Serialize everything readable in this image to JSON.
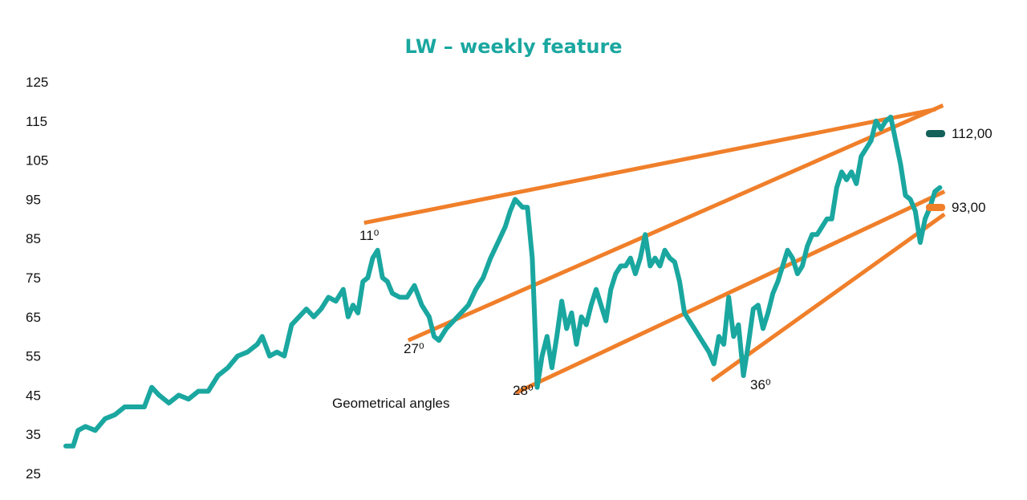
{
  "chart_data": {
    "type": "line",
    "title": "LW – weekly feature",
    "xlabel": "",
    "ylabel": "",
    "ylim": [
      25,
      125
    ],
    "yticks": [
      "125",
      "115",
      "105",
      "95",
      "85",
      "75",
      "65",
      "55",
      "45",
      "35",
      "25"
    ],
    "grid": false,
    "series": [
      {
        "color": "#1aa7a0",
        "points": [
          [
            0,
            32
          ],
          [
            3,
            32
          ],
          [
            5,
            36
          ],
          [
            8,
            37
          ],
          [
            12,
            36
          ],
          [
            16,
            39
          ],
          [
            20,
            40
          ],
          [
            24,
            42
          ],
          [
            28,
            42
          ],
          [
            32,
            42
          ],
          [
            35,
            47
          ],
          [
            38,
            45
          ],
          [
            42,
            43
          ],
          [
            46,
            45
          ],
          [
            50,
            44
          ],
          [
            54,
            46
          ],
          [
            58,
            46
          ],
          [
            62,
            50
          ],
          [
            66,
            52
          ],
          [
            70,
            55
          ],
          [
            74,
            56
          ],
          [
            78,
            58
          ],
          [
            80,
            60
          ],
          [
            83,
            55
          ],
          [
            86,
            56
          ],
          [
            89,
            55
          ],
          [
            92,
            63
          ],
          [
            95,
            65
          ],
          [
            98,
            67
          ],
          [
            101,
            65
          ],
          [
            104,
            67
          ],
          [
            107,
            70
          ],
          [
            110,
            69
          ],
          [
            113,
            72
          ],
          [
            115,
            65
          ],
          [
            117,
            68
          ],
          [
            119,
            66
          ],
          [
            121,
            74
          ],
          [
            123,
            75
          ],
          [
            125,
            80
          ],
          [
            127,
            82
          ],
          [
            129,
            75
          ],
          [
            131,
            74
          ],
          [
            133,
            71
          ],
          [
            136,
            70
          ],
          [
            139,
            70
          ],
          [
            142,
            73
          ],
          [
            145,
            68
          ],
          [
            148,
            65
          ],
          [
            150,
            60
          ],
          [
            152,
            59
          ],
          [
            155,
            62
          ],
          [
            158,
            64
          ],
          [
            161,
            66
          ],
          [
            164,
            68
          ],
          [
            167,
            72
          ],
          [
            170,
            75
          ],
          [
            173,
            80
          ],
          [
            176,
            84
          ],
          [
            179,
            88
          ],
          [
            181,
            92
          ],
          [
            183,
            95
          ],
          [
            186,
            93
          ],
          [
            188,
            93
          ],
          [
            190,
            80
          ],
          [
            191,
            64
          ],
          [
            192,
            47
          ],
          [
            194,
            55
          ],
          [
            196,
            60
          ],
          [
            198,
            52
          ],
          [
            200,
            60
          ],
          [
            202,
            69
          ],
          [
            204,
            62
          ],
          [
            206,
            66
          ],
          [
            208,
            58
          ],
          [
            210,
            65
          ],
          [
            212,
            63
          ],
          [
            214,
            68
          ],
          [
            216,
            72
          ],
          [
            218,
            68
          ],
          [
            220,
            64
          ],
          [
            222,
            72
          ],
          [
            224,
            76
          ],
          [
            226,
            78
          ],
          [
            228,
            78
          ],
          [
            230,
            80
          ],
          [
            232,
            76
          ],
          [
            234,
            80
          ],
          [
            236,
            86
          ],
          [
            238,
            78
          ],
          [
            240,
            80
          ],
          [
            242,
            78
          ],
          [
            244,
            82
          ],
          [
            246,
            80
          ],
          [
            248,
            79
          ],
          [
            250,
            74
          ],
          [
            252,
            66
          ],
          [
            254,
            64
          ],
          [
            256,
            62
          ],
          [
            258,
            60
          ],
          [
            260,
            58
          ],
          [
            262,
            56
          ],
          [
            264,
            53
          ],
          [
            266,
            60
          ],
          [
            268,
            58
          ],
          [
            270,
            70
          ],
          [
            272,
            60
          ],
          [
            274,
            63
          ],
          [
            276,
            50
          ],
          [
            278,
            58
          ],
          [
            280,
            67
          ],
          [
            282,
            68
          ],
          [
            284,
            62
          ],
          [
            286,
            66
          ],
          [
            288,
            71
          ],
          [
            290,
            74
          ],
          [
            292,
            78
          ],
          [
            294,
            82
          ],
          [
            296,
            80
          ],
          [
            298,
            76
          ],
          [
            300,
            78
          ],
          [
            302,
            83
          ],
          [
            304,
            86
          ],
          [
            306,
            86
          ],
          [
            308,
            88
          ],
          [
            310,
            90
          ],
          [
            312,
            90
          ],
          [
            314,
            98
          ],
          [
            316,
            102
          ],
          [
            318,
            100
          ],
          [
            320,
            102
          ],
          [
            322,
            99
          ],
          [
            324,
            106
          ],
          [
            326,
            108
          ],
          [
            328,
            110
          ],
          [
            330,
            115
          ],
          [
            332,
            113
          ],
          [
            334,
            115
          ],
          [
            336,
            116
          ],
          [
            338,
            110
          ],
          [
            340,
            104
          ],
          [
            342,
            96
          ],
          [
            344,
            95
          ],
          [
            346,
            92
          ],
          [
            348,
            84
          ],
          [
            350,
            90
          ],
          [
            352,
            93
          ],
          [
            354,
            97
          ],
          [
            356,
            98
          ]
        ]
      }
    ],
    "trendlines": [
      {
        "color": "#f07f2a",
        "points": [
          [
            121.5,
            89
          ],
          [
            354.3,
            118
          ]
        ],
        "label": "11⁰"
      },
      {
        "color": "#f07f2a",
        "points": [
          [
            139.5,
            59
          ],
          [
            357.3,
            119
          ]
        ],
        "label": "27⁰"
      },
      {
        "color": "#f07f2a",
        "points": [
          [
            183.3,
            45.6
          ],
          [
            357.9,
            97
          ]
        ],
        "label": "28⁰"
      },
      {
        "color": "#f07f2a",
        "points": [
          [
            263.1,
            48.7
          ],
          [
            357.9,
            91.2
          ]
        ],
        "label": "36⁰"
      }
    ],
    "annotations": {
      "geometric": "Geometrical angles"
    },
    "price_markers": [
      {
        "label": "112,00",
        "color": "#14615a"
      },
      {
        "label": "93,00",
        "color": "#f07f2a"
      }
    ],
    "colors": {
      "title": "#1aa7a0",
      "price_line": "#1aa7a0",
      "trendline": "#f07f2a",
      "marker_dark": "#14615a"
    }
  }
}
